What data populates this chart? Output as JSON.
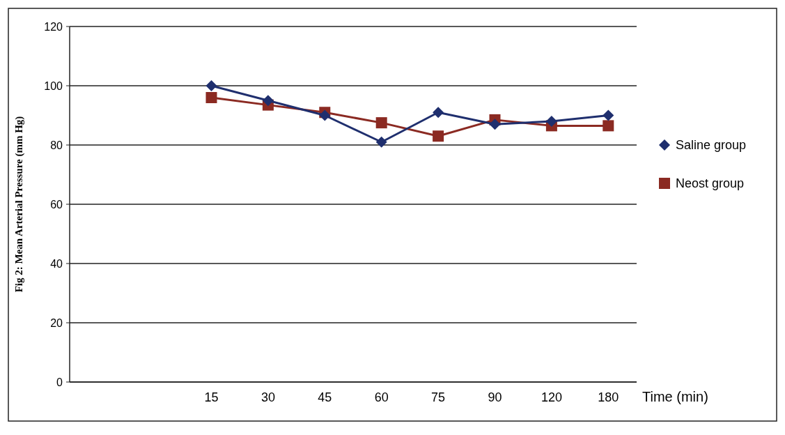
{
  "chart_data": {
    "type": "line",
    "ylabel": "Fig 2: Mean Arterial Pressure (mm Hg)",
    "xlabel": "Time (min)",
    "categories": [
      null,
      null,
      "15",
      "30",
      "45",
      "60",
      "75",
      "90",
      "120",
      "180"
    ],
    "series": [
      {
        "name": "Saline group",
        "color": "#1f2f6e",
        "marker": "diamond",
        "values": [
          null,
          null,
          100,
          95,
          90,
          81,
          91,
          87,
          88,
          90
        ]
      },
      {
        "name": "Neost group",
        "color": "#8b2a22",
        "marker": "square",
        "values": [
          null,
          null,
          96,
          93.5,
          91,
          87.5,
          83,
          88.5,
          86.5,
          86.5
        ]
      }
    ],
    "ylim": [
      0,
      120
    ],
    "yticks": [
      0,
      20,
      40,
      60,
      80,
      100,
      120
    ],
    "grid": "y",
    "legend": "right"
  }
}
